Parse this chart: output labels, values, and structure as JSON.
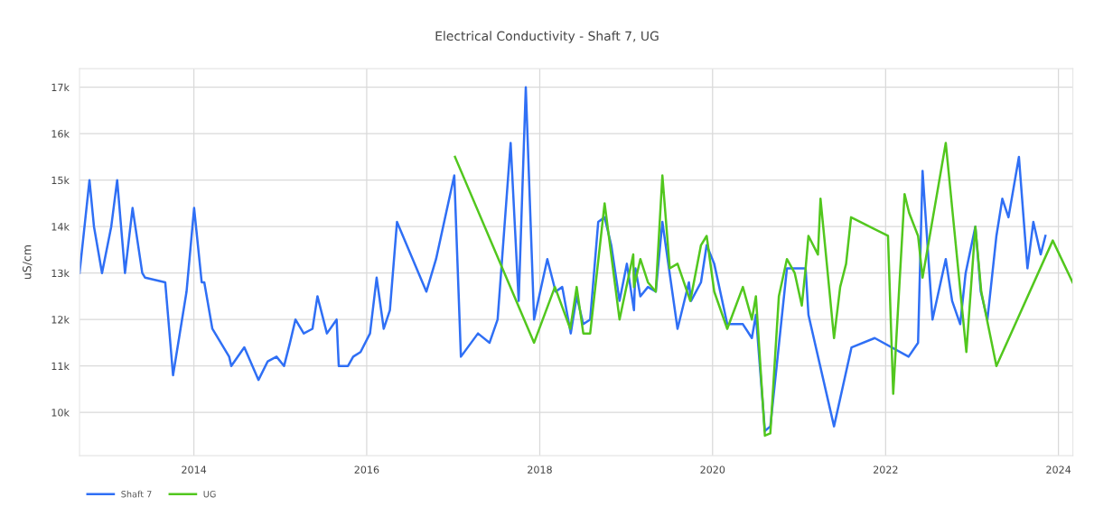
{
  "chart_data": {
    "type": "line",
    "title": "Electrical Conductivity - Shaft 7, UG",
    "ylabel": "uS/cm",
    "series": [
      {
        "name": "Shaft 7",
        "color": "#2f6ff5",
        "x": [
          "2012-09-05",
          "2012-10-17",
          "2012-11-05",
          "2012-12-09",
          "2013-01-17",
          "2013-02-11",
          "2013-03-16",
          "2013-04-17",
          "2013-05-28",
          "2013-06-09",
          "2013-09-02",
          "2013-10-05",
          "2013-12-01",
          "2014-01-02",
          "2014-02-03",
          "2014-02-14",
          "2014-03-20",
          "2014-05-30",
          "2014-06-08",
          "2014-08-02",
          "2014-10-01",
          "2014-11-09",
          "2014-12-16",
          "2015-01-17",
          "2015-02-11",
          "2015-03-06",
          "2015-04-10",
          "2015-05-17",
          "2015-06-07",
          "2015-07-17",
          "2015-08-27",
          "2015-09-05",
          "2015-10-14",
          "2015-11-05",
          "2015-12-06",
          "2016-01-15",
          "2016-02-12",
          "2016-03-13",
          "2016-04-08",
          "2016-05-08",
          "2016-09-09",
          "2016-10-20",
          "2017-01-05",
          "2017-02-02",
          "2017-04-15",
          "2017-06-03",
          "2017-07-07",
          "2017-08-31",
          "2017-10-04",
          "2017-11-03",
          "2017-12-08",
          "2018-02-02",
          "2018-03-09",
          "2018-04-06",
          "2018-05-12",
          "2018-06-06",
          "2018-07-04",
          "2018-08-02",
          "2018-09-05",
          "2018-10-02",
          "2018-10-30",
          "2018-12-04",
          "2019-01-04",
          "2019-02-03",
          "2019-02-09",
          "2019-03-02",
          "2019-04-03",
          "2019-05-06",
          "2019-06-03",
          "2019-08-06",
          "2019-09-23",
          "2019-10-02",
          "2019-11-13",
          "2019-12-07",
          "2020-01-08",
          "2020-03-03",
          "2020-05-08",
          "2020-06-15",
          "2020-07-02",
          "2020-08-09",
          "2020-09-01",
          "2020-11-10",
          "2021-01-28",
          "2021-02-09",
          "2021-05-28",
          "2021-08-10",
          "2021-11-16",
          "2022-04-08",
          "2022-05-18",
          "2022-06-06",
          "2022-07-18",
          "2022-09-12",
          "2022-10-09",
          "2022-11-12",
          "2022-12-05",
          "2023-01-15",
          "2023-02-07",
          "2023-03-07",
          "2023-04-14",
          "2023-05-09",
          "2023-06-04",
          "2023-07-18",
          "2023-08-23",
          "2023-09-17",
          "2023-10-18",
          "2023-11-07"
        ],
        "values": [
          13000,
          15000,
          14000,
          13000,
          14000,
          15000,
          13000,
          14400,
          13000,
          12900,
          12800,
          10800,
          12600,
          14400,
          12800,
          12800,
          11800,
          11200,
          11000,
          11400,
          10700,
          11100,
          11200,
          11000,
          11500,
          12000,
          11700,
          11800,
          12500,
          11700,
          12000,
          11000,
          11000,
          11200,
          11300,
          11700,
          12900,
          11800,
          12200,
          14100,
          12600,
          13300,
          15100,
          11200,
          11700,
          11500,
          12000,
          15800,
          12400,
          17000,
          12000,
          13300,
          12600,
          12700,
          11700,
          12500,
          11900,
          12000,
          14100,
          14200,
          13600,
          12400,
          13200,
          12200,
          13100,
          12500,
          12700,
          12600,
          14100,
          11800,
          12800,
          12400,
          12800,
          13600,
          13200,
          11900,
          11900,
          11600,
          12100,
          9600,
          9700,
          13100,
          13100,
          12100,
          9700,
          11400,
          11600,
          11200,
          11500,
          15200,
          12000,
          13300,
          12400,
          11900,
          13000,
          14000,
          12600,
          12000,
          13800,
          14600,
          14200,
          15500,
          13100,
          14100,
          13400,
          13800
        ]
      },
      {
        "name": "UG",
        "color": "#52c71e",
        "x": [
          "2017-01-08",
          "2017-12-08",
          "2018-03-06",
          "2018-05-10",
          "2018-06-06",
          "2018-07-04",
          "2018-08-02",
          "2018-10-02",
          "2018-12-04",
          "2019-01-31",
          "2019-02-03",
          "2019-03-02",
          "2019-04-03",
          "2019-05-06",
          "2019-06-03",
          "2019-07-04",
          "2019-08-06",
          "2019-09-29",
          "2019-11-13",
          "2019-12-07",
          "2020-01-08",
          "2020-03-03",
          "2020-05-08",
          "2020-06-15",
          "2020-07-02",
          "2020-08-09",
          "2020-09-01",
          "2020-10-07",
          "2020-11-10",
          "2020-12-13",
          "2021-01-12",
          "2021-01-28",
          "2021-02-09",
          "2021-03-21",
          "2021-04-01",
          "2021-05-28",
          "2021-06-23",
          "2021-07-18",
          "2021-08-08",
          "2022-01-11",
          "2022-02-02",
          "2022-03-22",
          "2022-04-10",
          "2022-05-18",
          "2022-06-06",
          "2022-09-12",
          "2022-12-08",
          "2023-01-15",
          "2023-02-09",
          "2023-04-14",
          "2023-12-08",
          "2024-03-01"
        ],
        "values": [
          15500,
          11500,
          12700,
          11800,
          12700,
          11700,
          11700,
          14500,
          12000,
          13400,
          12700,
          13300,
          12800,
          12600,
          15100,
          13100,
          13200,
          12400,
          13600,
          13800,
          12600,
          11800,
          12700,
          12000,
          12500,
          9500,
          9550,
          12500,
          13300,
          13000,
          12300,
          13100,
          13800,
          13400,
          14600,
          11600,
          12700,
          13200,
          14200,
          13800,
          10400,
          14700,
          14300,
          13800,
          12900,
          15800,
          11300,
          14000,
          12600,
          11000,
          13700,
          12800
        ]
      }
    ],
    "xlim": [
      "2012-09-05",
      "2024-03-02"
    ],
    "xticks": [
      {
        "value": "2014-01-01",
        "label": "2014"
      },
      {
        "value": "2016-01-01",
        "label": "2016"
      },
      {
        "value": "2018-01-01",
        "label": "2018"
      },
      {
        "value": "2020-01-01",
        "label": "2020"
      },
      {
        "value": "2022-01-01",
        "label": "2022"
      },
      {
        "value": "2024-01-01",
        "label": "2024"
      }
    ],
    "ylim": [
      9070,
      17400
    ],
    "yticks": [
      {
        "value": 10000,
        "label": "10k"
      },
      {
        "value": 11000,
        "label": "11k"
      },
      {
        "value": 12000,
        "label": "12k"
      },
      {
        "value": 13000,
        "label": "13k"
      },
      {
        "value": 14000,
        "label": "14k"
      },
      {
        "value": 15000,
        "label": "15k"
      },
      {
        "value": 16000,
        "label": "16k"
      },
      {
        "value": 17000,
        "label": "17k"
      }
    ],
    "grid": true,
    "legend": "bottom left",
    "marker": "none",
    "line_style": "solid"
  }
}
